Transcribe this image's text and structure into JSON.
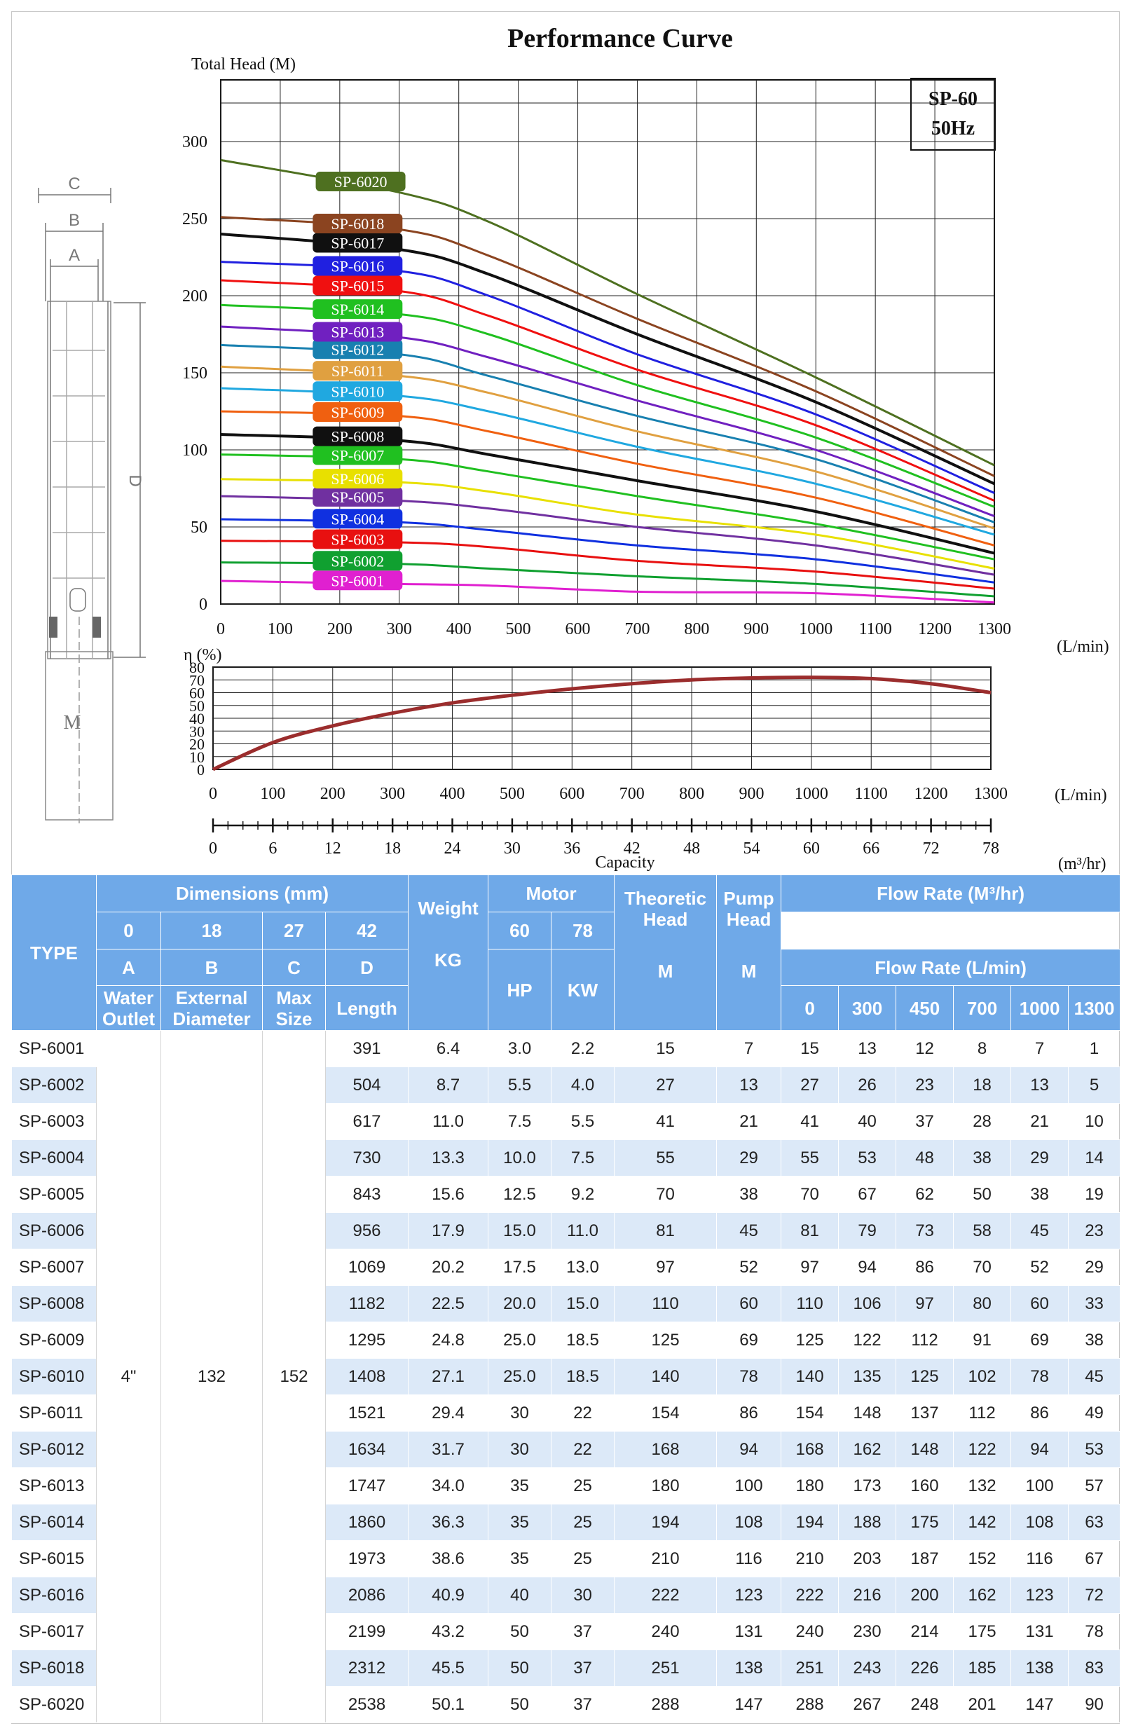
{
  "title": "Performance Curve",
  "model_box": {
    "line1": "SP-60",
    "line2": "50Hz"
  },
  "diagram_labels": {
    "a": "A",
    "b": "B",
    "c": "C",
    "d": "D",
    "m": "M"
  },
  "colors": {
    "header_bg": "#6fa9e8",
    "row_alt": "#dce9f8",
    "efficiency_curve": "#9b2d2d"
  },
  "chart_data": [
    {
      "type": "line",
      "title": "Performance Curve",
      "xlabel": "(L/min)",
      "ylabel": "Total Head (M)",
      "xlim": [
        0,
        1300
      ],
      "ylim": [
        0,
        340
      ],
      "x_ticks": [
        0,
        100,
        200,
        300,
        400,
        500,
        600,
        700,
        800,
        900,
        1000,
        1100,
        1200,
        1300
      ],
      "y_ticks": [
        0,
        50,
        100,
        150,
        200,
        250,
        300
      ],
      "grid": true,
      "x": [
        0,
        300,
        450,
        700,
        1000,
        1300
      ],
      "series": [
        {
          "name": "SP-6001",
          "color": "#e020d0",
          "values": [
            15,
            13,
            12,
            8,
            7,
            1
          ]
        },
        {
          "name": "SP-6002",
          "color": "#10a030",
          "values": [
            27,
            26,
            23,
            18,
            13,
            5
          ]
        },
        {
          "name": "SP-6003",
          "color": "#e81010",
          "values": [
            41,
            40,
            37,
            28,
            21,
            10
          ]
        },
        {
          "name": "SP-6004",
          "color": "#1030e0",
          "values": [
            55,
            53,
            48,
            38,
            29,
            14
          ]
        },
        {
          "name": "SP-6005",
          "color": "#7030a0",
          "values": [
            70,
            67,
            62,
            50,
            38,
            19
          ]
        },
        {
          "name": "SP-6006",
          "color": "#e8e000",
          "values": [
            81,
            79,
            73,
            58,
            45,
            23
          ]
        },
        {
          "name": "SP-6007",
          "color": "#20c020",
          "values": [
            97,
            94,
            86,
            70,
            52,
            29
          ]
        },
        {
          "name": "SP-6008",
          "color": "#101010",
          "values": [
            110,
            106,
            97,
            80,
            60,
            33
          ]
        },
        {
          "name": "SP-6009",
          "color": "#f06010",
          "values": [
            125,
            122,
            112,
            91,
            69,
            38
          ]
        },
        {
          "name": "SP-6010",
          "color": "#20a8e0",
          "values": [
            140,
            135,
            125,
            102,
            78,
            45
          ]
        },
        {
          "name": "SP-6011",
          "color": "#e0a040",
          "values": [
            154,
            148,
            137,
            112,
            86,
            49
          ]
        },
        {
          "name": "SP-6012",
          "color": "#1880b0",
          "values": [
            168,
            162,
            148,
            122,
            94,
            53
          ]
        },
        {
          "name": "SP-6013",
          "color": "#7020c0",
          "values": [
            180,
            173,
            160,
            132,
            100,
            57
          ]
        },
        {
          "name": "SP-6014",
          "color": "#20c020",
          "values": [
            194,
            188,
            175,
            142,
            108,
            63
          ]
        },
        {
          "name": "SP-6015",
          "color": "#f01010",
          "values": [
            210,
            203,
            187,
            152,
            116,
            67
          ]
        },
        {
          "name": "SP-6016",
          "color": "#2020e0",
          "values": [
            222,
            216,
            200,
            162,
            123,
            72
          ]
        },
        {
          "name": "SP-6017",
          "color": "#101010",
          "values": [
            240,
            230,
            214,
            175,
            131,
            78
          ]
        },
        {
          "name": "SP-6018",
          "color": "#8b4420",
          "values": [
            251,
            243,
            226,
            185,
            138,
            83
          ]
        },
        {
          "name": "SP-6020",
          "color": "#4e7020",
          "values": [
            288,
            267,
            248,
            201,
            147,
            90
          ]
        }
      ]
    },
    {
      "type": "line",
      "ylabel": "η (%)",
      "xlabel": "(L/min)",
      "xlim": [
        0,
        1300
      ],
      "ylim": [
        0,
        80
      ],
      "x_ticks": [
        0,
        100,
        200,
        300,
        400,
        500,
        600,
        700,
        800,
        900,
        1000,
        1100,
        1200,
        1300
      ],
      "y_ticks": [
        0,
        10,
        20,
        30,
        40,
        50,
        60,
        70,
        80
      ],
      "grid": true,
      "series": [
        {
          "color": "#9b2d2d",
          "x": [
            0,
            100,
            200,
            300,
            400,
            500,
            600,
            700,
            800,
            900,
            1000,
            1100,
            1200,
            1300
          ],
          "values": [
            0,
            21,
            34,
            44,
            52,
            58,
            63,
            67,
            70,
            71.5,
            72,
            71,
            67,
            60
          ]
        }
      ]
    },
    {
      "type": "axis",
      "xlabel": "Capacity",
      "unit": "(m³/hr)",
      "xlim": [
        0,
        78
      ],
      "x_ticks": [
        0,
        6,
        12,
        18,
        24,
        30,
        36,
        42,
        48,
        54,
        60,
        66,
        72,
        78
      ]
    }
  ],
  "table": {
    "headers": {
      "type": "TYPE",
      "dimensions": "Dimensions (mm)",
      "weight": "Weight",
      "motor": "Motor",
      "theoretic_head": "Theoretic Head",
      "pump_head": "Pump Head",
      "flow_rate_m3": "Flow Rate (M³/hr)",
      "flow_rate_lmin": "Flow Rate (L/min)",
      "col_a": "A",
      "col_b": "B",
      "col_c": "C",
      "col_d": "D",
      "a_desc": "Water Outlet",
      "b_desc": "External Diameter",
      "c_desc": "Max Size",
      "d_desc": "Length",
      "kg": "KG",
      "hp": "HP",
      "kw": "KW",
      "m1": "M",
      "m2": "M",
      "flow_m3_values": [
        "0",
        "18",
        "27",
        "42",
        "60",
        "78"
      ],
      "flow_lmin_values": [
        "0",
        "300",
        "450",
        "700",
        "1000",
        "1300"
      ]
    },
    "shared": {
      "a": "4\"",
      "b": "132",
      "c": "152"
    },
    "rows": [
      {
        "type": "SP-6001",
        "d": "391",
        "kg": "6.4",
        "hp": "3.0",
        "kw": "2.2",
        "theo": "15",
        "pump": "7",
        "flow": [
          "15",
          "13",
          "12",
          "8",
          "7",
          "1"
        ]
      },
      {
        "type": "SP-6002",
        "d": "504",
        "kg": "8.7",
        "hp": "5.5",
        "kw": "4.0",
        "theo": "27",
        "pump": "13",
        "flow": [
          "27",
          "26",
          "23",
          "18",
          "13",
          "5"
        ]
      },
      {
        "type": "SP-6003",
        "d": "617",
        "kg": "11.0",
        "hp": "7.5",
        "kw": "5.5",
        "theo": "41",
        "pump": "21",
        "flow": [
          "41",
          "40",
          "37",
          "28",
          "21",
          "10"
        ]
      },
      {
        "type": "SP-6004",
        "d": "730",
        "kg": "13.3",
        "hp": "10.0",
        "kw": "7.5",
        "theo": "55",
        "pump": "29",
        "flow": [
          "55",
          "53",
          "48",
          "38",
          "29",
          "14"
        ]
      },
      {
        "type": "SP-6005",
        "d": "843",
        "kg": "15.6",
        "hp": "12.5",
        "kw": "9.2",
        "theo": "70",
        "pump": "38",
        "flow": [
          "70",
          "67",
          "62",
          "50",
          "38",
          "19"
        ]
      },
      {
        "type": "SP-6006",
        "d": "956",
        "kg": "17.9",
        "hp": "15.0",
        "kw": "11.0",
        "theo": "81",
        "pump": "45",
        "flow": [
          "81",
          "79",
          "73",
          "58",
          "45",
          "23"
        ]
      },
      {
        "type": "SP-6007",
        "d": "1069",
        "kg": "20.2",
        "hp": "17.5",
        "kw": "13.0",
        "theo": "97",
        "pump": "52",
        "flow": [
          "97",
          "94",
          "86",
          "70",
          "52",
          "29"
        ]
      },
      {
        "type": "SP-6008",
        "d": "1182",
        "kg": "22.5",
        "hp": "20.0",
        "kw": "15.0",
        "theo": "110",
        "pump": "60",
        "flow": [
          "110",
          "106",
          "97",
          "80",
          "60",
          "33"
        ]
      },
      {
        "type": "SP-6009",
        "d": "1295",
        "kg": "24.8",
        "hp": "25.0",
        "kw": "18.5",
        "theo": "125",
        "pump": "69",
        "flow": [
          "125",
          "122",
          "112",
          "91",
          "69",
          "38"
        ]
      },
      {
        "type": "SP-6010",
        "d": "1408",
        "kg": "27.1",
        "hp": "25.0",
        "kw": "18.5",
        "theo": "140",
        "pump": "78",
        "flow": [
          "140",
          "135",
          "125",
          "102",
          "78",
          "45"
        ]
      },
      {
        "type": "SP-6011",
        "d": "1521",
        "kg": "29.4",
        "hp": "30",
        "kw": "22",
        "theo": "154",
        "pump": "86",
        "flow": [
          "154",
          "148",
          "137",
          "112",
          "86",
          "49"
        ]
      },
      {
        "type": "SP-6012",
        "d": "1634",
        "kg": "31.7",
        "hp": "30",
        "kw": "22",
        "theo": "168",
        "pump": "94",
        "flow": [
          "168",
          "162",
          "148",
          "122",
          "94",
          "53"
        ]
      },
      {
        "type": "SP-6013",
        "d": "1747",
        "kg": "34.0",
        "hp": "35",
        "kw": "25",
        "theo": "180",
        "pump": "100",
        "flow": [
          "180",
          "173",
          "160",
          "132",
          "100",
          "57"
        ]
      },
      {
        "type": "SP-6014",
        "d": "1860",
        "kg": "36.3",
        "hp": "35",
        "kw": "25",
        "theo": "194",
        "pump": "108",
        "flow": [
          "194",
          "188",
          "175",
          "142",
          "108",
          "63"
        ]
      },
      {
        "type": "SP-6015",
        "d": "1973",
        "kg": "38.6",
        "hp": "35",
        "kw": "25",
        "theo": "210",
        "pump": "116",
        "flow": [
          "210",
          "203",
          "187",
          "152",
          "116",
          "67"
        ]
      },
      {
        "type": "SP-6016",
        "d": "2086",
        "kg": "40.9",
        "hp": "40",
        "kw": "30",
        "theo": "222",
        "pump": "123",
        "flow": [
          "222",
          "216",
          "200",
          "162",
          "123",
          "72"
        ]
      },
      {
        "type": "SP-6017",
        "d": "2199",
        "kg": "43.2",
        "hp": "50",
        "kw": "37",
        "theo": "240",
        "pump": "131",
        "flow": [
          "240",
          "230",
          "214",
          "175",
          "131",
          "78"
        ]
      },
      {
        "type": "SP-6018",
        "d": "2312",
        "kg": "45.5",
        "hp": "50",
        "kw": "37",
        "theo": "251",
        "pump": "138",
        "flow": [
          "251",
          "243",
          "226",
          "185",
          "138",
          "83"
        ]
      },
      {
        "type": "SP-6020",
        "d": "2538",
        "kg": "50.1",
        "hp": "50",
        "kw": "37",
        "theo": "288",
        "pump": "147",
        "flow": [
          "288",
          "267",
          "248",
          "201",
          "147",
          "90"
        ]
      }
    ]
  }
}
